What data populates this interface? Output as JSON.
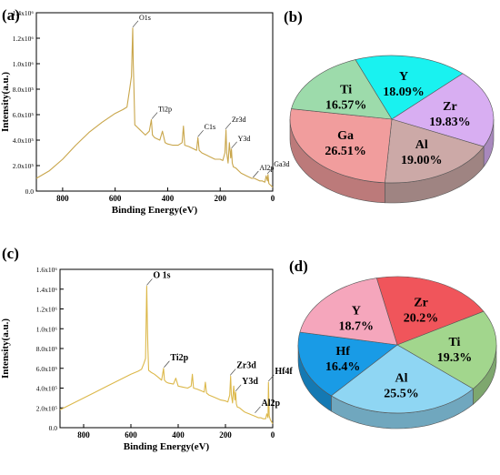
{
  "panels": {
    "a": "(a)",
    "b": "(b)",
    "c": "(c)",
    "d": "(d)"
  },
  "chart_data": [
    {
      "id": "a",
      "type": "line",
      "title": "",
      "xlabel": "Binding Energy(eV)",
      "ylabel": "Intensity(a.u.)",
      "x_reversed": true,
      "xlim": [
        0,
        900
      ],
      "ylim": [
        0,
        1400000
      ],
      "xticks": [
        800,
        600,
        400,
        200,
        0
      ],
      "yticks": [
        {
          "value": 0,
          "label": "0.0"
        },
        {
          "value": 200000,
          "label": "2.0x10⁵"
        },
        {
          "value": 400000,
          "label": "4.0x10⁵"
        },
        {
          "value": 600000,
          "label": "6.0x10⁵"
        },
        {
          "value": 800000,
          "label": "8.0x10⁵"
        },
        {
          "value": 1000000,
          "label": "1.0x10⁶"
        },
        {
          "value": 1200000,
          "label": "1.2x10⁶"
        },
        {
          "value": 1400000,
          "label": "1.4x10⁶"
        }
      ],
      "series": [
        {
          "color": "#c9a64b",
          "x": [
            900,
            850,
            800,
            750,
            700,
            650,
            600,
            570,
            555,
            545,
            538,
            533,
            531,
            529,
            525,
            515,
            505,
            495,
            485,
            470,
            462,
            458,
            450,
            440,
            430,
            420,
            410,
            400,
            380,
            360,
            345,
            340,
            335,
            320,
            300,
            290,
            285,
            280,
            270,
            260,
            250,
            240,
            230,
            220,
            200,
            190,
            182,
            178,
            175,
            170,
            165,
            160,
            157,
            154,
            150,
            140,
            130,
            120,
            110,
            100,
            90,
            80,
            70,
            60,
            50,
            40,
            30,
            25,
            20,
            18,
            15,
            10,
            5,
            0
          ],
          "y": [
            100000,
            160000,
            250000,
            360000,
            460000,
            540000,
            610000,
            640000,
            660000,
            800000,
            900000,
            1280000,
            1000000,
            850000,
            520000,
            500000,
            480000,
            460000,
            440000,
            470000,
            560000,
            440000,
            420000,
            410000,
            400000,
            470000,
            380000,
            370000,
            360000,
            360000,
            380000,
            510000,
            360000,
            350000,
            330000,
            320000,
            420000,
            320000,
            300000,
            290000,
            280000,
            270000,
            260000,
            250000,
            250000,
            240000,
            300000,
            480000,
            300000,
            220000,
            380000,
            260000,
            330000,
            220000,
            190000,
            180000,
            160000,
            140000,
            130000,
            120000,
            110000,
            100000,
            100000,
            90000,
            80000,
            80000,
            70000,
            120000,
            80000,
            130000,
            60000,
            50000,
            40000,
            30000
          ]
        }
      ],
      "annotations": [
        {
          "text": "O1s",
          "x": 533,
          "y": 1280000
        },
        {
          "text": "Ti2p",
          "x": 460,
          "y": 560000
        },
        {
          "text": "Zr3d",
          "x": 180,
          "y": 480000
        },
        {
          "text": "C1s",
          "x": 285,
          "y": 420000
        },
        {
          "text": "Y3d",
          "x": 157,
          "y": 330000
        },
        {
          "text": "Al2p",
          "x": 75,
          "y": 100000
        },
        {
          "text": "Ga3d",
          "x": 20,
          "y": 130000
        }
      ]
    },
    {
      "id": "b",
      "type": "pie",
      "labels": [
        "Y",
        "Zr",
        "Al",
        "Ga",
        "Ti"
      ],
      "values": [
        18.09,
        19.83,
        19.0,
        26.51,
        16.57
      ],
      "value_labels": [
        "18.09%",
        "19.83%",
        "19.00%",
        "26.51%",
        "16.57%"
      ],
      "colors": [
        "#19f2f0",
        "#d8aef2",
        "#cca9a7",
        "#f19d9d",
        "#9ddbab"
      ]
    },
    {
      "id": "c",
      "type": "line",
      "title": "",
      "xlabel": "Binding Energy(eV)",
      "ylabel": "Intensity(a.u.)",
      "x_reversed": true,
      "xlim": [
        0,
        900
      ],
      "ylim": [
        0,
        1600000
      ],
      "xticks": [
        800,
        600,
        400,
        200,
        0
      ],
      "yticks": [
        {
          "value": 0,
          "label": "0.0"
        },
        {
          "value": 200000,
          "label": "2.0x10⁵"
        },
        {
          "value": 400000,
          "label": "4.0x10⁵"
        },
        {
          "value": 600000,
          "label": "6.0x10⁵"
        },
        {
          "value": 800000,
          "label": "8.0x10⁵"
        },
        {
          "value": 1000000,
          "label": "1.0x10⁶"
        },
        {
          "value": 1200000,
          "label": "1.2x10⁶"
        },
        {
          "value": 1400000,
          "label": "1.4x10⁶"
        },
        {
          "value": 1600000,
          "label": "1.6x10⁶"
        }
      ],
      "series": [
        {
          "color": "#dcb84a",
          "x": [
            900,
            850,
            800,
            750,
            700,
            650,
            600,
            570,
            555,
            545,
            538,
            533,
            530,
            528,
            525,
            515,
            500,
            490,
            480,
            470,
            462,
            458,
            450,
            440,
            420,
            410,
            400,
            380,
            360,
            345,
            340,
            335,
            320,
            300,
            290,
            285,
            280,
            270,
            250,
            240,
            230,
            220,
            200,
            190,
            182,
            178,
            175,
            170,
            165,
            160,
            157,
            154,
            150,
            140,
            130,
            120,
            110,
            100,
            90,
            80,
            70,
            60,
            50,
            40,
            30,
            25,
            20,
            18,
            15,
            10,
            5,
            0
          ],
          "y": [
            180000,
            240000,
            300000,
            360000,
            420000,
            480000,
            540000,
            570000,
            590000,
            650000,
            700000,
            1430000,
            1000000,
            800000,
            580000,
            560000,
            540000,
            520000,
            500000,
            480000,
            600000,
            480000,
            460000,
            450000,
            440000,
            500000,
            420000,
            410000,
            400000,
            420000,
            540000,
            400000,
            390000,
            370000,
            360000,
            460000,
            350000,
            330000,
            310000,
            300000,
            290000,
            280000,
            270000,
            260000,
            330000,
            520000,
            330000,
            250000,
            420000,
            280000,
            360000,
            240000,
            210000,
            200000,
            180000,
            160000,
            150000,
            140000,
            130000,
            120000,
            110000,
            100000,
            100000,
            90000,
            90000,
            140000,
            100000,
            460000,
            120000,
            80000,
            60000,
            40000
          ]
        }
      ],
      "annotations": [
        {
          "text": "O 1s",
          "x": 533,
          "y": 1430000
        },
        {
          "text": "Ti2p",
          "x": 460,
          "y": 600000
        },
        {
          "text": "Zr3d",
          "x": 180,
          "y": 520000
        },
        {
          "text": "Y3d",
          "x": 157,
          "y": 360000
        },
        {
          "text": "Hf4f",
          "x": 18,
          "y": 460000
        },
        {
          "text": "Al2p",
          "x": 75,
          "y": 140000
        }
      ]
    },
    {
      "id": "d",
      "type": "pie",
      "labels": [
        "Zr",
        "Ti",
        "Al",
        "Hf",
        "Y"
      ],
      "values": [
        20.2,
        19.3,
        25.5,
        16.4,
        18.7
      ],
      "value_labels": [
        "20.2%",
        "19.3%",
        "25.5%",
        "16.4%",
        "18.7%"
      ],
      "colors": [
        "#f0555b",
        "#a2d68d",
        "#8fd6f3",
        "#199be6",
        "#f5a6bc"
      ]
    }
  ]
}
